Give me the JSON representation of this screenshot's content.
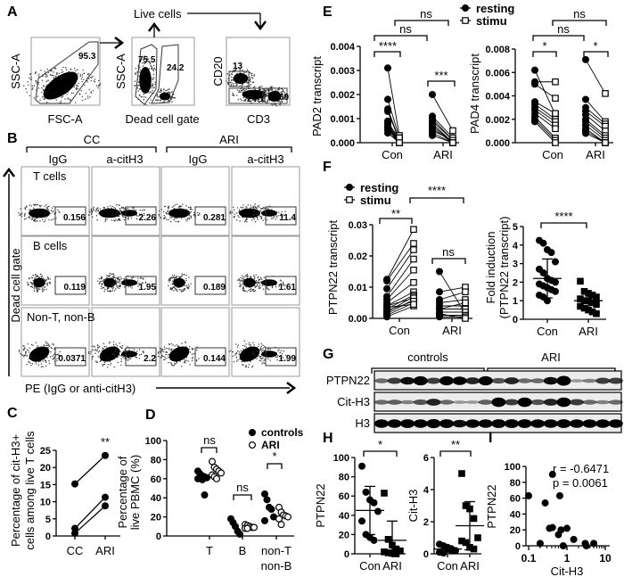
{
  "panel_letters": [
    "A",
    "B",
    "C",
    "D",
    "E",
    "F",
    "G",
    "H",
    "I"
  ],
  "panel_a": {
    "live_cells": "Live cells",
    "plots": [
      {
        "x_label": "FSC-A",
        "y_label": "SSC-A",
        "gates": [
          "95.3"
        ]
      },
      {
        "x_label": "Dead cell gate",
        "y_label": "SSC-A",
        "gates": [
          "75.5",
          "24.2"
        ]
      },
      {
        "x_label": "CD3",
        "y_label": "CD20",
        "gates": [
          "13",
          "24.1",
          "60"
        ]
      }
    ]
  },
  "panel_b": {
    "groups": [
      "CC",
      "ARI"
    ],
    "columns": [
      "IgG",
      "a-citH3",
      "IgG",
      "a-citH3"
    ],
    "rows": [
      {
        "label": "T cells",
        "values": [
          "0.156",
          "2.26",
          "0.281",
          "11.4"
        ]
      },
      {
        "label": "B cells",
        "values": [
          "0.119",
          "1.95",
          "0.189",
          "1.61"
        ]
      },
      {
        "label": "Non-T, non-B",
        "values": [
          "0.0371",
          "2.2",
          "0.144",
          "1.99"
        ]
      }
    ],
    "y_axis": "Dead cell gate",
    "x_axis": "PE (IgG or anti-citH3)"
  },
  "panel_g": {
    "groups": [
      "controls",
      "ARI"
    ],
    "rows": [
      {
        "label": "PTPN22",
        "intensity": [
          0.3,
          0.5,
          0.7,
          0.9,
          0.5,
          0.9,
          0.8,
          0.6,
          0.9,
          0.4,
          0.6,
          0.3,
          0.3,
          0.7,
          1.0,
          0.1,
          0.2,
          0.5,
          0.5
        ]
      },
      {
        "label": "Cit-H3",
        "intensity": [
          0.3,
          0.35,
          0.2,
          0.4,
          0.6,
          0.3,
          0.1,
          0.1,
          0.35,
          0.95,
          0.5,
          0.95,
          0.4,
          0.6,
          0.95,
          0.5,
          0.3,
          0.2,
          0.3
        ]
      },
      {
        "label": "H3",
        "intensity": [
          0.8,
          0.8,
          0.85,
          0.8,
          0.9,
          0.85,
          0.7,
          0.8,
          0.8,
          0.85,
          0.85,
          0.85,
          0.8,
          0.8,
          0.85,
          0.8,
          0.8,
          0.8,
          0.8
        ]
      }
    ]
  },
  "chart_data": [
    {
      "panel": "C",
      "type": "line",
      "ylabel_lines": [
        "Percentage of cit-H3+",
        "cells among live T cells"
      ],
      "categories": [
        "CC",
        "ARI"
      ],
      "yticks": [
        "0",
        "5",
        "10",
        "15",
        "20",
        "25"
      ],
      "ylim": [
        0,
        25
      ],
      "pairs": [
        [
          15.2,
          23.5
        ],
        [
          2.2,
          11.3
        ],
        [
          0.8,
          8.8
        ]
      ],
      "annotation": "**"
    },
    {
      "panel": "D",
      "type": "scatter",
      "ylabel_lines": [
        "Percentage of",
        "live PBMC (%)"
      ],
      "categories": [
        [
          "T"
        ],
        [
          "B"
        ],
        [
          "non-T",
          "non-B"
        ]
      ],
      "yticks": [
        "0",
        "20",
        "40",
        "60",
        "80",
        "100"
      ],
      "ylim": [
        0,
        100
      ],
      "series": [
        {
          "name": "controls",
          "marker": "filled-circle",
          "values": [
            [
              68,
              65,
              63,
              62,
              61,
              60,
              60,
              59,
              43
            ],
            [
              18,
              14,
              10,
              5,
              2
            ],
            [
              44,
              38,
              30,
              28,
              20,
              16
            ]
          ]
        },
        {
          "name": "ARI",
          "marker": "open-circle",
          "values": [
            [
              78,
              72,
              70,
              68,
              66,
              64,
              62,
              60
            ],
            [
              12,
              11,
              10,
              9,
              9,
              8,
              8
            ],
            [
              30,
              25,
              22,
              21,
              20,
              18,
              12
            ]
          ]
        }
      ],
      "significance": [
        "ns",
        "ns",
        "*"
      ]
    },
    {
      "panel": "E-left",
      "type": "line",
      "ylabel": "PAD2 transcript",
      "categories": [
        "Con",
        "ARI"
      ],
      "yticks": [
        "0.000",
        "0.001",
        "0.002",
        "0.003",
        "0.004"
      ],
      "ylim": [
        0,
        0.004
      ],
      "legend": [
        "resting",
        "stimu"
      ],
      "groups": [
        {
          "resting": [
            0.0031,
            0.0018,
            0.0014,
            0.0013,
            0.0009,
            0.0008,
            0.0007,
            0.0006,
            0.0005,
            0.0004,
            0.0008,
            0.0006
          ],
          "stimu": [
            0.0003,
            0.0002,
            0.0001,
            0.0001,
            5e-05,
            0,
            0,
            0.0001,
            0,
            0,
            0.0002,
            0
          ]
        },
        {
          "resting": [
            0.002,
            0.0011,
            0.001,
            0.0009,
            0.0008,
            0.0007,
            0.0006,
            0.0005,
            0.0004,
            0.0003
          ],
          "stimu": [
            0.0005,
            0.0002,
            0.0001,
            0.0001,
            0,
            0,
            0,
            0.0001,
            0,
            0
          ]
        }
      ],
      "significance": [
        "****",
        "***",
        "ns",
        "ns"
      ]
    },
    {
      "panel": "E-right",
      "type": "line",
      "ylabel": "PAD4 transcript",
      "categories": [
        "Con",
        "ARI"
      ],
      "yticks": [
        "0.000",
        "0.002",
        "0.004",
        "0.006",
        "0.008"
      ],
      "ylim": [
        0,
        0.008
      ],
      "groups": [
        {
          "resting": [
            0.0062,
            0.0052,
            0.005,
            0.0035,
            0.0033,
            0.003,
            0.0028,
            0.0025,
            0.0022,
            0.002,
            0.0018
          ],
          "stimu": [
            0.0024,
            0.0052,
            0.0038,
            0.0025,
            0.002,
            0.0018,
            0.0015,
            0.0012,
            0.0004,
            0.0002,
            0
          ]
        },
        {
          "resting": [
            0.0071,
            0.0037,
            0.003,
            0.0027,
            0.0024,
            0.002,
            0.0018,
            0.0015,
            0.0012,
            0.001,
            0.0008
          ],
          "stimu": [
            0.0042,
            0.0018,
            0.0016,
            0.0014,
            0.001,
            0.0006,
            0.0004,
            0.0002,
            0,
            0,
            0
          ]
        }
      ],
      "significance": [
        "*",
        "*",
        "ns",
        "ns"
      ]
    },
    {
      "panel": "F-left",
      "type": "line",
      "ylabel": "PTPN22 transcript",
      "categories": [
        "Con",
        "ARI"
      ],
      "yticks": [
        "0.00",
        "0.01",
        "0.02",
        "0.03"
      ],
      "ylim": [
        0,
        0.03
      ],
      "legend": [
        "resting",
        "stimu"
      ],
      "groups": [
        {
          "resting": [
            0.0125,
            0.012,
            0.0095,
            0.007,
            0.006,
            0.005,
            0.004,
            0.003,
            0.002,
            0.0015,
            0.001,
            0.0005,
            0.004,
            0.0025,
            0.0035
          ],
          "stimu": [
            0.0285,
            0.024,
            0.022,
            0.019,
            0.0155,
            0.0115,
            0.0085,
            0.0075,
            0.007,
            0.006,
            0.005,
            0.004,
            0.0065,
            0.0055,
            0.0045
          ]
        },
        {
          "resting": [
            0.015,
            0.0085,
            0.006,
            0.005,
            0.004,
            0.003,
            0.002,
            0.001,
            0.0005,
            0.003,
            0.0015
          ],
          "stimu": [
            0.0015,
            0.01,
            0.0085,
            0.006,
            0.004,
            0.003,
            0.002,
            0.001,
            0.0005,
            0.005,
            0
          ]
        }
      ],
      "significance": [
        "**",
        "ns",
        "****"
      ]
    },
    {
      "panel": "F-right",
      "type": "scatter",
      "ylabel_lines": [
        "Fold induction",
        "(PTPN22 transcript)"
      ],
      "categories": [
        "Con",
        "ARI"
      ],
      "yticks": [
        "0",
        "1",
        "2",
        "3",
        "4",
        "5"
      ],
      "ylim": [
        0,
        5
      ],
      "groups": [
        {
          "values": [
            4.25,
            4.1,
            3.75,
            3.6,
            3.1,
            2.7,
            2.5,
            2.2,
            2.1,
            2.0,
            1.9,
            1.8,
            1.7,
            1.6,
            1.5,
            1.3,
            1.2,
            1.0
          ],
          "mean": 2.2,
          "sd": 1.05,
          "marker": "circle"
        },
        {
          "values": [
            2.05,
            1.5,
            1.4,
            1.3,
            1.2,
            1.1,
            1.0,
            1.0,
            0.9,
            0.8,
            0.7,
            0.6,
            0.5,
            0.4,
            0.3
          ],
          "mean": 1.0,
          "sd": 0.45,
          "marker": "square"
        }
      ],
      "significance": "****"
    },
    {
      "panel": "H-left",
      "type": "scatter",
      "ylabel": "PTPN22",
      "categories": [
        "Con",
        "ARI"
      ],
      "yticks": [
        "0",
        "20",
        "40",
        "60",
        "80",
        "100"
      ],
      "ylim": [
        0,
        100
      ],
      "groups": [
        {
          "values": [
            91,
            64,
            56,
            53,
            44,
            34,
            20,
            17,
            14
          ],
          "mean": 45,
          "sd": 25,
          "marker": "circle"
        },
        {
          "values": [
            63,
            15,
            9,
            5,
            3,
            2,
            1,
            0.5,
            0
          ],
          "mean": 14,
          "sd": 20,
          "marker": "square"
        }
      ],
      "significance": "*"
    },
    {
      "panel": "H-right",
      "type": "scatter",
      "ylabel": "Cit-H3",
      "categories": [
        "Con",
        "ARI"
      ],
      "yticks": [
        "0",
        "2",
        "4",
        "6"
      ],
      "ylim": [
        0,
        6
      ],
      "groups": [
        {
          "values": [
            0.6,
            0.5,
            0.4,
            0.3,
            0.2,
            0.1,
            0.05,
            0.3,
            0.2
          ],
          "mean": 0.3,
          "sd": 0.2,
          "marker": "circle"
        },
        {
          "values": [
            5,
            3,
            2.8,
            2.2,
            1.0,
            0.8,
            0.7,
            0.4,
            0.3
          ],
          "mean": 1.75,
          "sd": 1.5,
          "marker": "square"
        }
      ],
      "significance": "**"
    },
    {
      "panel": "I",
      "type": "scatter",
      "xlabel": "Cit-H3",
      "ylabel": "PTPN22",
      "xscale": "log",
      "xticks": [
        "0.1",
        "1",
        "10"
      ],
      "xlim": [
        0.1,
        10
      ],
      "yticks": [
        "0",
        "20",
        "40",
        "60",
        "80",
        "100"
      ],
      "ylim": [
        0,
        100
      ],
      "points": [
        [
          0.1,
          63
        ],
        [
          0.2,
          3
        ],
        [
          0.27,
          54
        ],
        [
          0.35,
          22
        ],
        [
          0.42,
          23
        ],
        [
          0.42,
          90
        ],
        [
          0.6,
          14
        ],
        [
          0.65,
          63
        ],
        [
          0.7,
          20
        ],
        [
          0.8,
          0
        ],
        [
          1.0,
          22
        ],
        [
          1.5,
          8
        ],
        [
          3,
          3
        ],
        [
          3.2,
          0
        ],
        [
          5,
          3
        ]
      ],
      "annotations": [
        "r = -0.6471",
        "p = 0.0061"
      ]
    }
  ]
}
